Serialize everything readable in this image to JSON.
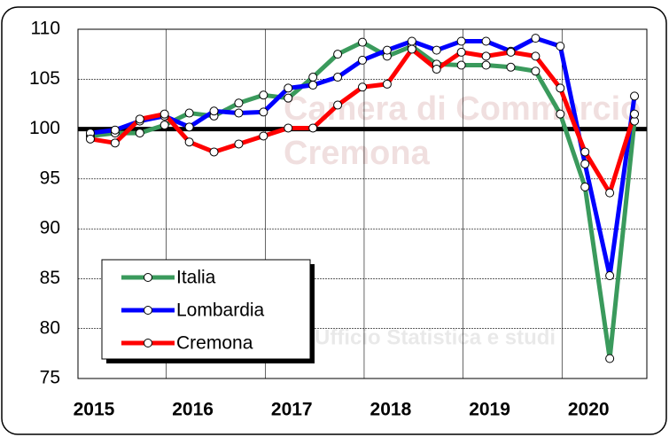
{
  "chart_data": {
    "type": "line",
    "categories": [
      "2015",
      null,
      null,
      null,
      "2016",
      null,
      null,
      null,
      "2017",
      null,
      null,
      null,
      "2018",
      null,
      null,
      null,
      "2019",
      null,
      null,
      null,
      "2020",
      null,
      null
    ],
    "series": [
      {
        "name": "Italia",
        "color": "#3a9a5c",
        "values": [
          99.3,
          99.6,
          99.6,
          100.4,
          101.6,
          101.3,
          102.6,
          103.4,
          103.1,
          105.2,
          107.5,
          108.7,
          107.3,
          108.3,
          106.5,
          106.4,
          106.4,
          106.2,
          105.8,
          101.5,
          94.2,
          77.0,
          100.8
        ]
      },
      {
        "name": "Lombardia",
        "color": "#0000ff",
        "values": [
          99.6,
          99.9,
          100.8,
          101.3,
          100.2,
          101.8,
          101.6,
          101.7,
          104.1,
          104.4,
          105.2,
          106.9,
          107.9,
          108.8,
          107.9,
          108.8,
          108.8,
          107.8,
          109.1,
          108.3,
          96.5,
          85.3,
          103.3
        ]
      },
      {
        "name": "Cremona",
        "color": "#ff0000",
        "values": [
          99.0,
          98.6,
          101.0,
          101.5,
          98.7,
          97.7,
          98.5,
          99.3,
          100.1,
          100.1,
          102.4,
          104.2,
          104.5,
          108.0,
          106.0,
          107.7,
          107.3,
          107.7,
          107.3,
          104.1,
          97.7,
          93.6,
          101.5
        ]
      }
    ],
    "ylim": [
      75,
      110
    ],
    "yticks": [
      75,
      80,
      85,
      90,
      95,
      100,
      105,
      110
    ],
    "reference_line": 100,
    "grid": true,
    "legend": "lower left",
    "watermark": [
      "Camera di Commercio",
      "Cremona",
      "Ufficio Statistica e studi"
    ]
  }
}
